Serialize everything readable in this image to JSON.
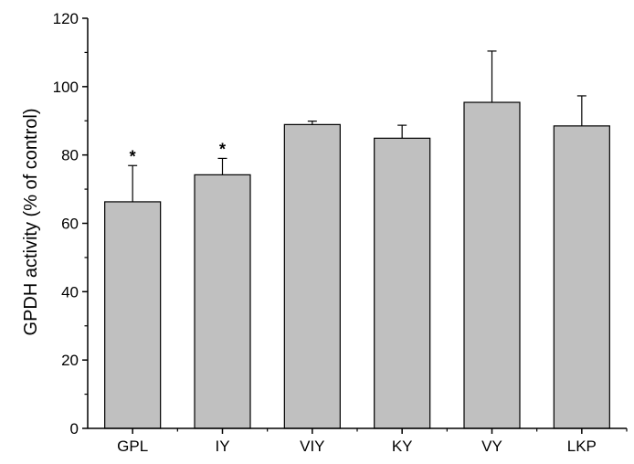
{
  "chart_data": {
    "type": "bar",
    "title": "",
    "xlabel": "",
    "ylabel": "GPDH activity (% of control)",
    "categories": [
      "GPL",
      "IY",
      "VIY",
      "KY",
      "VY",
      "LKP"
    ],
    "values": [
      66.3,
      74.2,
      88.9,
      84.9,
      95.4,
      88.5
    ],
    "errors": [
      10.6,
      4.8,
      1.0,
      3.8,
      15.0,
      8.8
    ],
    "annotations": [
      "*",
      "*",
      "",
      "",
      "",
      ""
    ],
    "ylim": [
      0,
      120
    ],
    "yticks": [
      "0",
      "20",
      "40",
      "60",
      "80",
      "100",
      "120"
    ],
    "grid": false,
    "bar_color": "#c0c0c0",
    "edge_color": "#000000"
  }
}
